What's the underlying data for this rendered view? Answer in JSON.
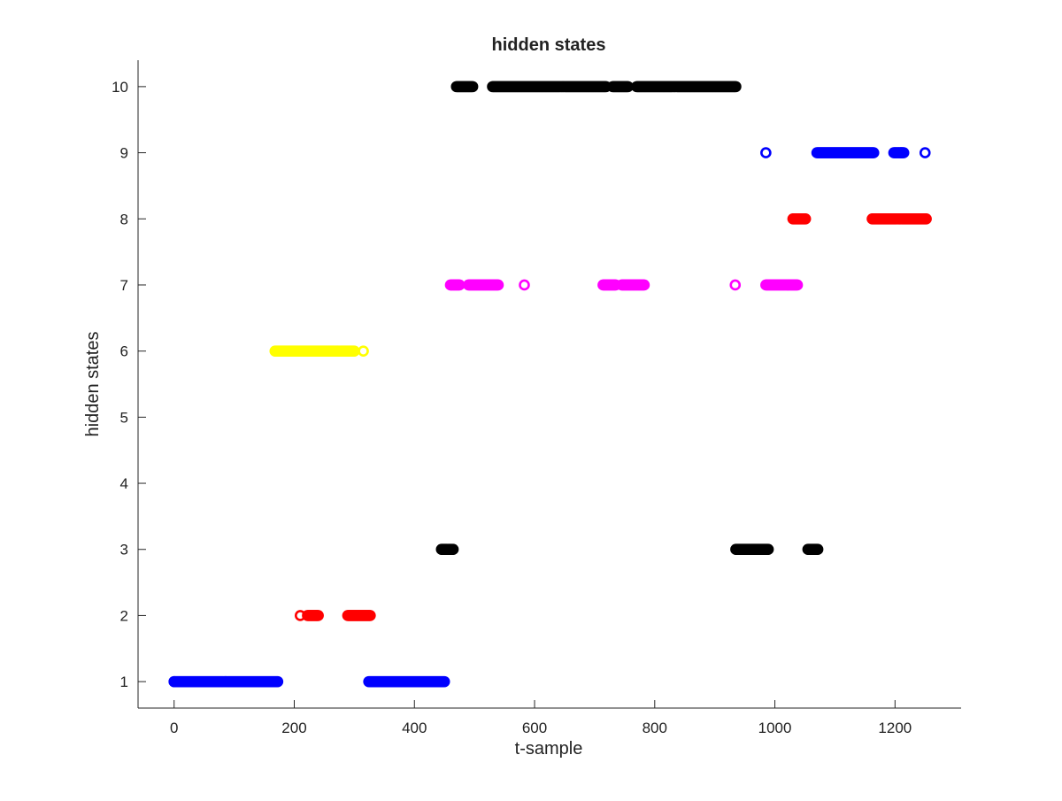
{
  "chart_data": {
    "type": "scatter",
    "title": "hidden states",
    "xlabel": "t-sample",
    "ylabel": "hidden states",
    "xlim": [
      -60,
      1310
    ],
    "ylim": [
      0.6,
      10.4
    ],
    "x_ticks": [
      0,
      200,
      400,
      600,
      800,
      1000,
      1200
    ],
    "y_ticks": [
      1,
      2,
      3,
      4,
      5,
      6,
      7,
      8,
      9,
      10
    ],
    "grid": false,
    "legend": "none",
    "marker": "open-circle",
    "step": 1.5,
    "series": [
      {
        "state": 1,
        "color": "#0000ff",
        "points": [
          0
        ],
        "runs": [
          [
            0,
            173
          ],
          [
            324,
            450
          ]
        ]
      },
      {
        "state": 2,
        "color": "#ff0000",
        "points": [
          210
        ],
        "runs": [
          [
            222,
            241
          ],
          [
            289,
            327
          ]
        ]
      },
      {
        "state": 3,
        "color": "#000000",
        "points": [],
        "runs": [
          [
            445,
            465
          ],
          [
            935,
            990
          ],
          [
            1055,
            1072
          ]
        ]
      },
      {
        "state": 6,
        "color": "#ffff00",
        "points": [
          315
        ],
        "runs": [
          [
            168,
            300
          ]
        ]
      },
      {
        "state": 7,
        "color": "#ff00ff",
        "points": [
          583,
          934
        ],
        "runs": [
          [
            460,
            475
          ],
          [
            490,
            540
          ],
          [
            714,
            735
          ],
          [
            745,
            783
          ],
          [
            985,
            1038
          ]
        ]
      },
      {
        "state": 8,
        "color": "#ff0000",
        "points": [],
        "runs": [
          [
            1030,
            1052
          ],
          [
            1162,
            1252
          ]
        ]
      },
      {
        "state": 9,
        "color": "#0000ff",
        "points": [
          985,
          1210,
          1250
        ],
        "runs": [
          [
            1070,
            1165
          ],
          [
            1198,
            1215
          ]
        ]
      },
      {
        "state": 10,
        "color": "#000000",
        "points": [],
        "runs": [
          [
            470,
            498
          ],
          [
            530,
            720
          ],
          [
            730,
            756
          ],
          [
            770,
            935
          ]
        ]
      }
    ]
  }
}
